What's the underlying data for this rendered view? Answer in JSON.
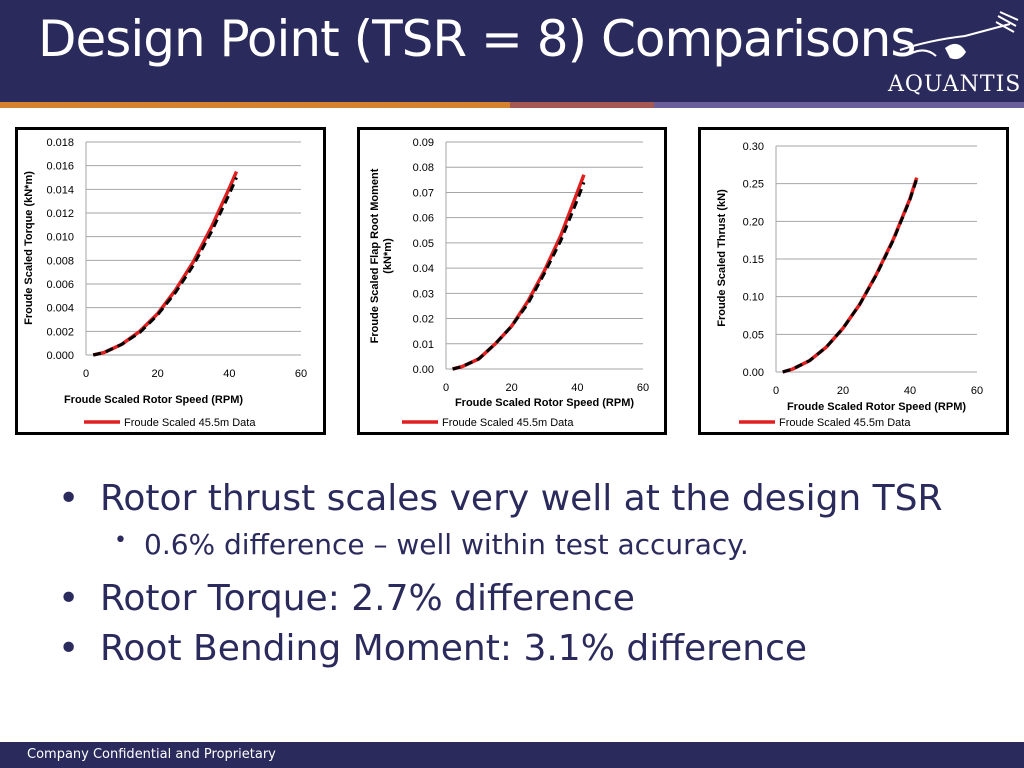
{
  "slide": {
    "title": "Design Point (TSR = 8) Comparisons",
    "logo_text": "AQUANTIS",
    "footer": "Company Confidential and Proprietary",
    "colors": {
      "header": "#2b2a5c",
      "stripe_orange": "#d4822e",
      "stripe_red": "#a45a52",
      "stripe_purple": "#6c5f99",
      "data_line": "#e02020",
      "fit_line": "#000000"
    },
    "bullets": [
      {
        "level": 1,
        "text": "Rotor thrust scales very well at the design TSR"
      },
      {
        "level": 2,
        "text": "0.6% difference – well within test accuracy."
      },
      {
        "level": 1,
        "text": "Rotor Torque: 2.7% difference"
      },
      {
        "level": 1,
        "text": "Root Bending Moment: 3.1% difference"
      }
    ]
  },
  "chart_data": [
    {
      "type": "line",
      "xlabel": "Froude Scaled Rotor Speed (RPM)",
      "ylabel": "Froude Scaled Torque (kN*m)",
      "xlim": [
        0,
        60
      ],
      "ylim": [
        0,
        0.018
      ],
      "x_ticks": [
        "0",
        "20",
        "40",
        "60"
      ],
      "y_ticks": [
        "0.000",
        "0.002",
        "0.004",
        "0.006",
        "0.008",
        "0.010",
        "0.012",
        "0.014",
        "0.016",
        "0.018"
      ],
      "grid": true,
      "legend_position": "bottom",
      "series": [
        {
          "name": "Froude Scaled 45.5m Data",
          "style": "solid-red",
          "x": [
            2,
            5,
            10,
            15,
            20,
            25,
            30,
            35,
            40,
            42
          ],
          "y": [
            0.0,
            0.0002,
            0.0009,
            0.002,
            0.0035,
            0.0055,
            0.0079,
            0.0108,
            0.0141,
            0.0155
          ]
        },
        {
          "name": "",
          "style": "dashed-black",
          "x": [
            2,
            5,
            10,
            15,
            20,
            25,
            30,
            35,
            40,
            42
          ],
          "y": [
            0.0,
            0.0002,
            0.0009,
            0.0019,
            0.0034,
            0.0053,
            0.0076,
            0.0104,
            0.0136,
            0.015
          ]
        }
      ]
    },
    {
      "type": "line",
      "xlabel": "Froude Scaled Rotor Speed (RPM)",
      "ylabel": "Froude Scaled Flap Root Moment (kN*m)",
      "xlim": [
        0,
        60
      ],
      "ylim": [
        0,
        0.09
      ],
      "x_ticks": [
        "0",
        "20",
        "40",
        "60"
      ],
      "y_ticks": [
        "0.00",
        "0.01",
        "0.02",
        "0.03",
        "0.04",
        "0.05",
        "0.06",
        "0.07",
        "0.08",
        "0.09"
      ],
      "grid": true,
      "legend_position": "bottom",
      "series": [
        {
          "name": "Froude Scaled 45.5m Data",
          "style": "solid-red",
          "x": [
            2,
            5,
            10,
            15,
            20,
            25,
            30,
            35,
            40,
            42
          ],
          "y": [
            0.0,
            0.001,
            0.004,
            0.01,
            0.017,
            0.027,
            0.039,
            0.053,
            0.07,
            0.077
          ]
        },
        {
          "name": "",
          "style": "dashed-black",
          "x": [
            2,
            5,
            10,
            15,
            20,
            25,
            30,
            35,
            40,
            42
          ],
          "y": [
            0.0,
            0.001,
            0.004,
            0.01,
            0.017,
            0.026,
            0.038,
            0.051,
            0.067,
            0.074
          ]
        }
      ]
    },
    {
      "type": "line",
      "xlabel": "Froude Scaled Rotor Speed (RPM)",
      "ylabel": "Froude Scaled Thrust (kN)",
      "xlim": [
        0,
        60
      ],
      "ylim": [
        0,
        0.3
      ],
      "x_ticks": [
        "0",
        "20",
        "40",
        "60"
      ],
      "y_ticks": [
        "0.00",
        "0.05",
        "0.10",
        "0.15",
        "0.20",
        "0.25",
        "0.30"
      ],
      "grid": true,
      "legend_position": "bottom",
      "series": [
        {
          "name": "Froude Scaled 45.5m Data",
          "style": "solid-red",
          "x": [
            2,
            5,
            10,
            15,
            20,
            25,
            30,
            35,
            40,
            42
          ],
          "y": [
            0.0,
            0.004,
            0.015,
            0.033,
            0.058,
            0.09,
            0.13,
            0.176,
            0.23,
            0.258
          ]
        },
        {
          "name": "",
          "style": "dashed-black",
          "x": [
            2,
            5,
            10,
            15,
            20,
            25,
            30,
            35,
            40,
            42
          ],
          "y": [
            0.0,
            0.004,
            0.015,
            0.033,
            0.058,
            0.09,
            0.129,
            0.175,
            0.229,
            0.256
          ]
        }
      ]
    }
  ]
}
